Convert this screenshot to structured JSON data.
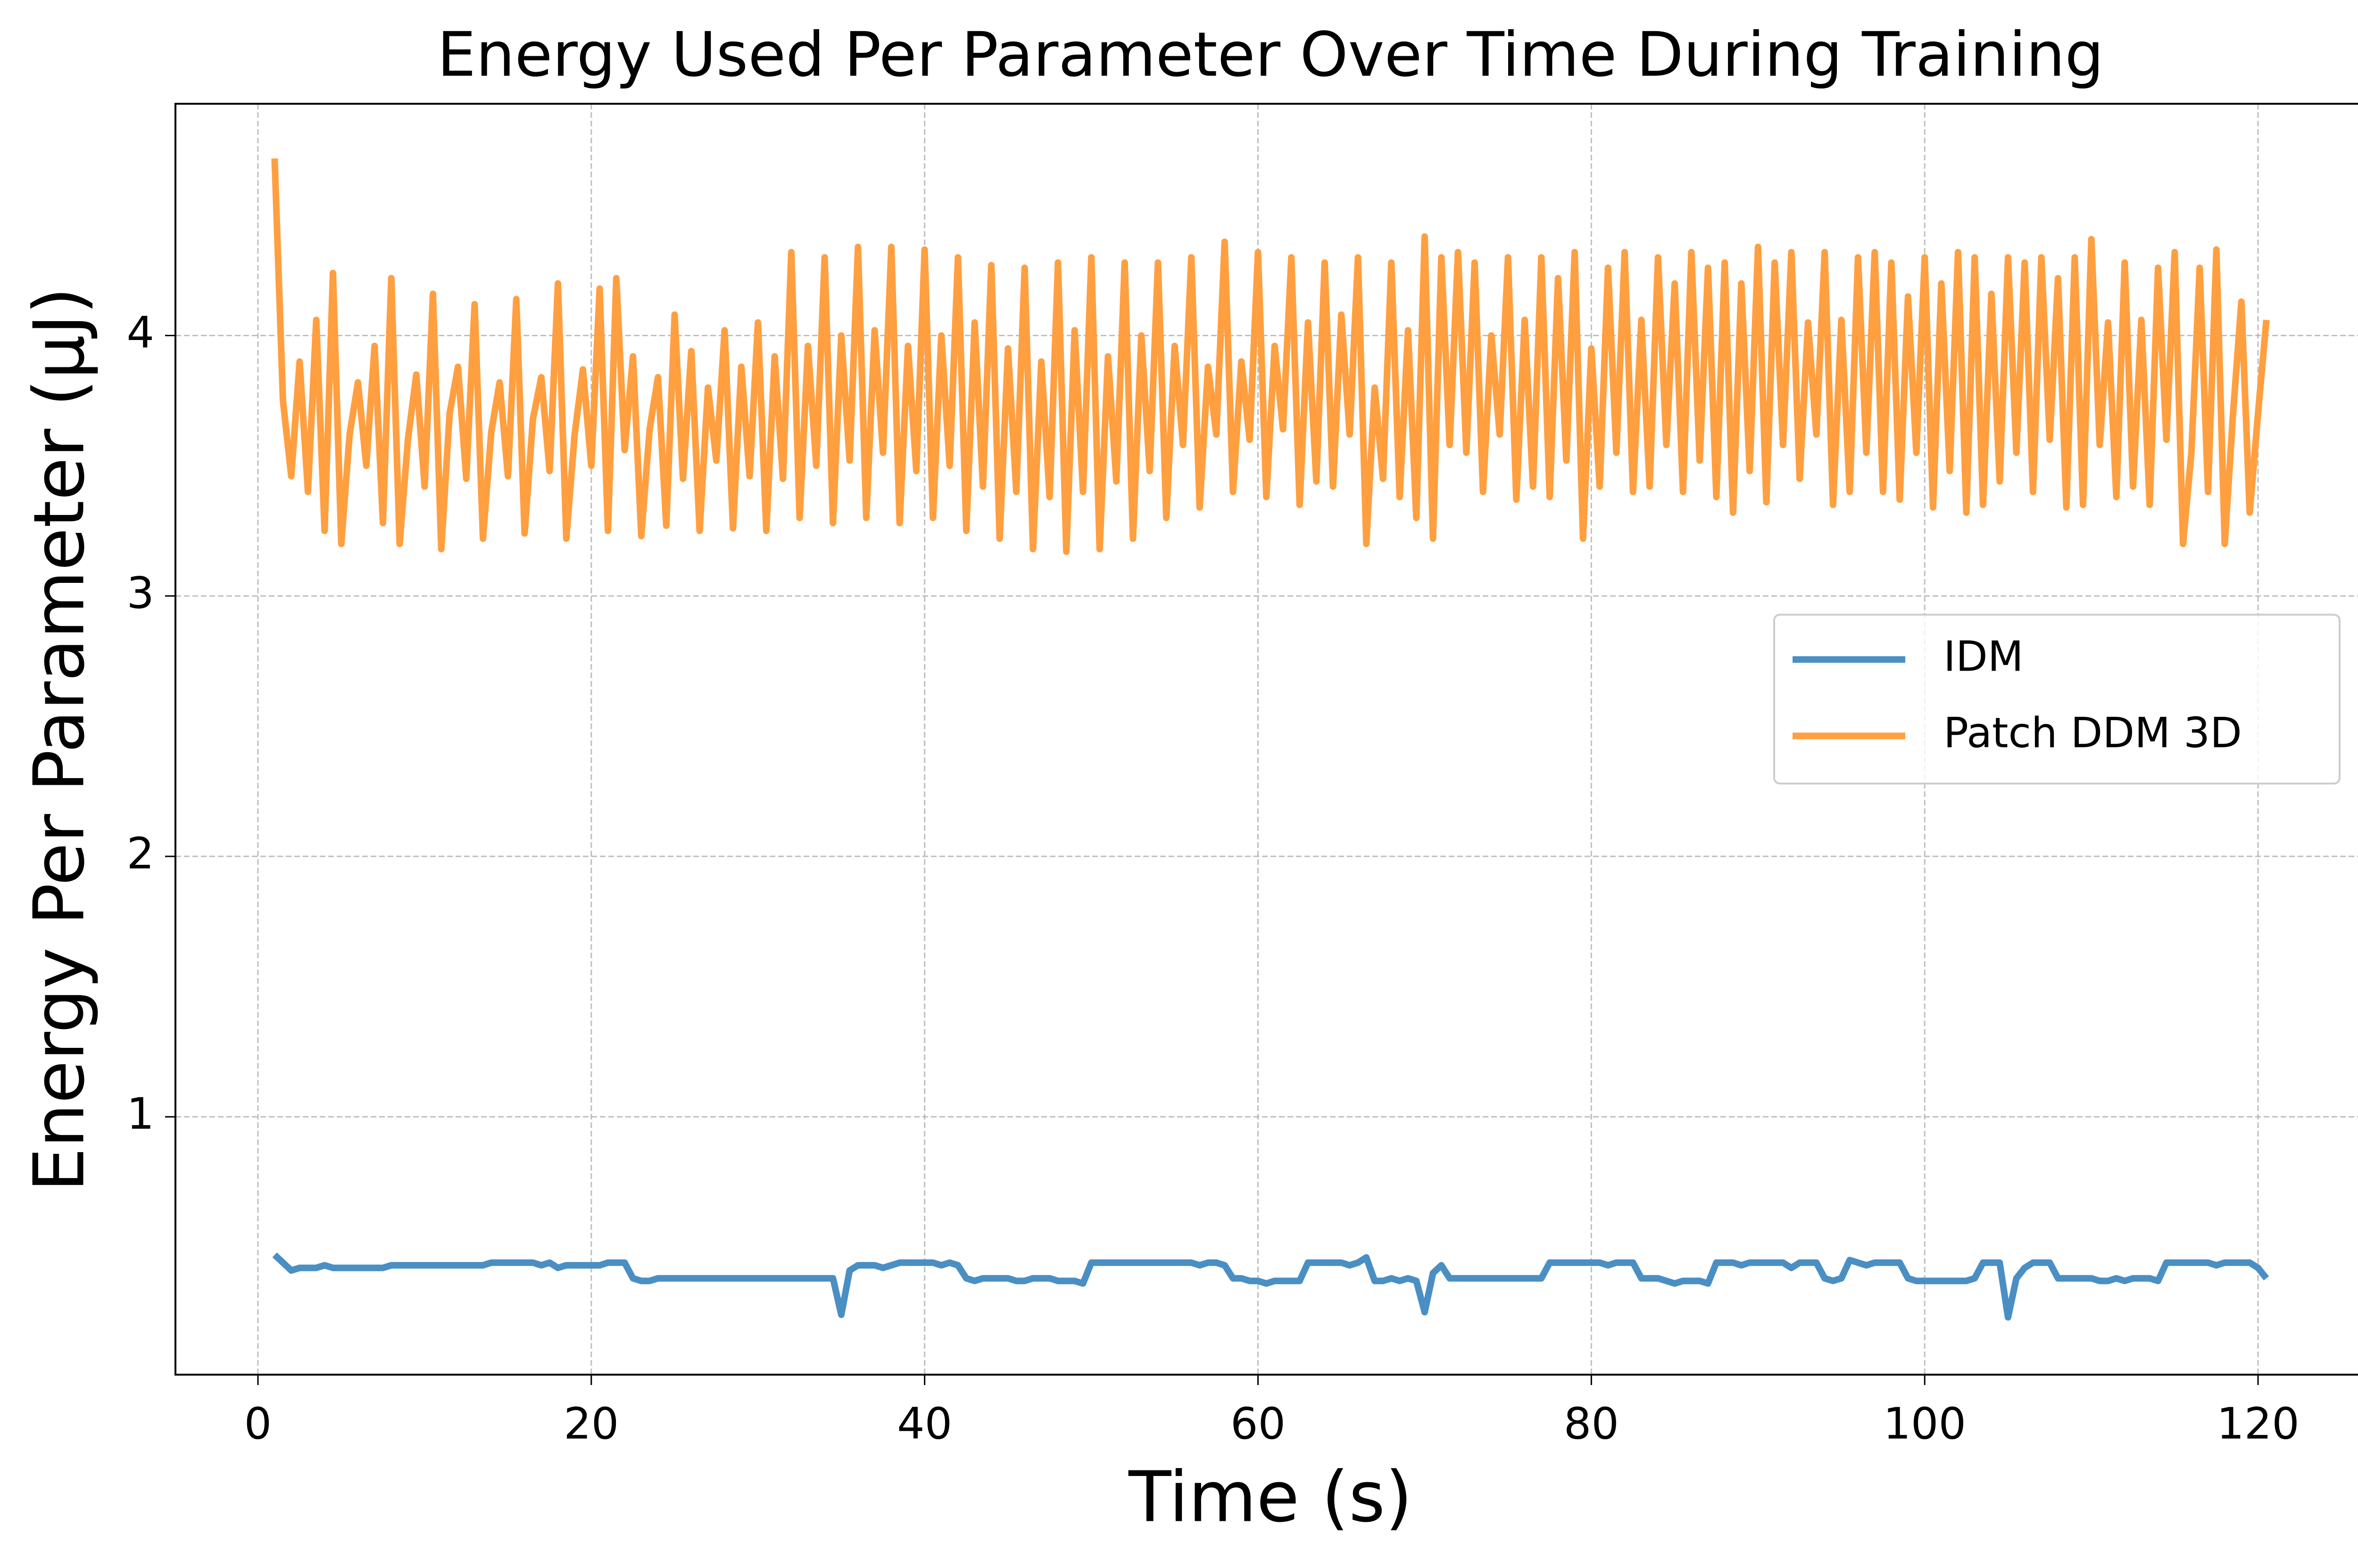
{
  "chart_data": {
    "type": "line",
    "title": "Energy Used Per Parameter Over Time During Training",
    "x_label": "Time (s)",
    "y_label": "Energy Per Parameter (μJ)",
    "x": [
      1,
      1.5,
      2,
      2.5,
      3,
      3.5,
      4,
      4.5,
      5,
      5.5,
      6,
      6.5,
      7,
      7.5,
      8,
      8.5,
      9,
      9.5,
      10,
      10.5,
      11,
      11.5,
      12,
      12.5,
      13,
      13.5,
      14,
      14.5,
      15,
      15.5,
      16,
      16.5,
      17,
      17.5,
      18,
      18.5,
      19,
      19.5,
      20,
      20.5,
      21,
      21.5,
      22,
      22.5,
      23,
      23.5,
      24,
      24.5,
      25,
      25.5,
      26,
      26.5,
      27,
      27.5,
      28,
      28.5,
      29,
      29.5,
      30,
      30.5,
      31,
      31.5,
      32,
      32.5,
      33,
      33.5,
      34,
      34.5,
      35,
      35.5,
      36,
      36.5,
      37,
      37.5,
      38,
      38.5,
      39,
      39.5,
      40,
      40.5,
      41,
      41.5,
      42,
      42.5,
      43,
      43.5,
      44,
      44.5,
      45,
      45.5,
      46,
      46.5,
      47,
      47.5,
      48,
      48.5,
      49,
      49.5,
      50,
      50.5,
      51,
      51.5,
      52,
      52.5,
      53,
      53.5,
      54,
      54.5,
      55,
      55.5,
      56,
      56.5,
      57,
      57.5,
      58,
      58.5,
      59,
      59.5,
      60,
      60.5,
      61,
      61.5,
      62,
      62.5,
      63,
      63.5,
      64,
      64.5,
      65,
      65.5,
      66,
      66.5,
      67,
      67.5,
      68,
      68.5,
      69,
      69.5,
      70,
      70.5,
      71,
      71.5,
      72,
      72.5,
      73,
      73.5,
      74,
      74.5,
      75,
      75.5,
      76,
      76.5,
      77,
      77.5,
      78,
      78.5,
      79,
      79.5,
      80,
      80.5,
      81,
      81.5,
      82,
      82.5,
      83,
      83.5,
      84,
      84.5,
      85,
      85.5,
      86,
      86.5,
      87,
      87.5,
      88,
      88.5,
      89,
      89.5,
      90,
      90.5,
      91,
      91.5,
      92,
      92.5,
      93,
      93.5,
      94,
      94.5,
      95,
      95.5,
      96,
      96.5,
      97,
      97.5,
      98,
      98.5,
      99,
      99.5,
      100,
      100.5,
      101,
      101.5,
      102,
      102.5,
      103,
      103.5,
      104,
      104.5,
      105,
      105.5,
      106,
      106.5,
      107,
      107.5,
      108,
      108.5,
      109,
      109.5,
      110,
      110.5,
      111,
      111.5,
      112,
      112.5,
      113,
      113.5,
      114,
      114.5,
      115,
      115.5,
      116,
      116.5,
      117,
      117.5,
      118,
      118.5,
      119,
      119.5,
      120,
      120.5
    ],
    "series": [
      {
        "name": "IDM",
        "color": "#4a8fc4",
        "values": [
          0.47,
          0.44,
          0.41,
          0.42,
          0.42,
          0.42,
          0.43,
          0.42,
          0.42,
          0.42,
          0.42,
          0.42,
          0.42,
          0.42,
          0.43,
          0.43,
          0.43,
          0.43,
          0.43,
          0.43,
          0.43,
          0.43,
          0.43,
          0.43,
          0.43,
          0.43,
          0.44,
          0.44,
          0.44,
          0.44,
          0.44,
          0.44,
          0.43,
          0.44,
          0.42,
          0.43,
          0.43,
          0.43,
          0.43,
          0.43,
          0.44,
          0.44,
          0.44,
          0.38,
          0.37,
          0.37,
          0.38,
          0.38,
          0.38,
          0.38,
          0.38,
          0.38,
          0.38,
          0.38,
          0.38,
          0.38,
          0.38,
          0.38,
          0.38,
          0.38,
          0.38,
          0.38,
          0.38,
          0.38,
          0.38,
          0.38,
          0.38,
          0.38,
          0.24,
          0.41,
          0.43,
          0.43,
          0.43,
          0.42,
          0.43,
          0.44,
          0.44,
          0.44,
          0.44,
          0.44,
          0.43,
          0.44,
          0.43,
          0.38,
          0.37,
          0.38,
          0.38,
          0.38,
          0.38,
          0.37,
          0.37,
          0.38,
          0.38,
          0.38,
          0.37,
          0.37,
          0.37,
          0.36,
          0.44,
          0.44,
          0.44,
          0.44,
          0.44,
          0.44,
          0.44,
          0.44,
          0.44,
          0.44,
          0.44,
          0.44,
          0.44,
          0.43,
          0.44,
          0.44,
          0.43,
          0.38,
          0.38,
          0.37,
          0.37,
          0.36,
          0.37,
          0.37,
          0.37,
          0.37,
          0.44,
          0.44,
          0.44,
          0.44,
          0.44,
          0.43,
          0.44,
          0.46,
          0.37,
          0.37,
          0.38,
          0.37,
          0.38,
          0.37,
          0.25,
          0.4,
          0.43,
          0.38,
          0.38,
          0.38,
          0.38,
          0.38,
          0.38,
          0.38,
          0.38,
          0.38,
          0.38,
          0.38,
          0.38,
          0.44,
          0.44,
          0.44,
          0.44,
          0.44,
          0.44,
          0.44,
          0.43,
          0.44,
          0.44,
          0.44,
          0.38,
          0.38,
          0.38,
          0.37,
          0.36,
          0.37,
          0.37,
          0.37,
          0.36,
          0.44,
          0.44,
          0.44,
          0.43,
          0.44,
          0.44,
          0.44,
          0.44,
          0.44,
          0.42,
          0.44,
          0.44,
          0.44,
          0.38,
          0.37,
          0.38,
          0.45,
          0.44,
          0.43,
          0.44,
          0.44,
          0.44,
          0.44,
          0.38,
          0.37,
          0.37,
          0.37,
          0.37,
          0.37,
          0.37,
          0.37,
          0.38,
          0.44,
          0.44,
          0.44,
          0.23,
          0.38,
          0.42,
          0.44,
          0.44,
          0.44,
          0.38,
          0.38,
          0.38,
          0.38,
          0.38,
          0.37,
          0.37,
          0.38,
          0.37,
          0.38,
          0.38,
          0.38,
          0.37,
          0.44,
          0.44,
          0.44,
          0.44,
          0.44,
          0.44,
          0.43,
          0.44,
          0.44,
          0.44,
          0.44,
          0.42,
          0.38
        ]
      },
      {
        "name": "Patch DDM 3D",
        "color": "#ff9f40",
        "values": [
          4.68,
          3.75,
          3.46,
          3.9,
          3.4,
          4.06,
          3.25,
          4.24,
          3.2,
          3.62,
          3.82,
          3.5,
          3.96,
          3.28,
          4.22,
          3.2,
          3.6,
          3.85,
          3.42,
          4.16,
          3.18,
          3.7,
          3.88,
          3.45,
          4.12,
          3.22,
          3.63,
          3.82,
          3.46,
          4.14,
          3.24,
          3.68,
          3.84,
          3.48,
          4.2,
          3.22,
          3.62,
          3.87,
          3.5,
          4.18,
          3.25,
          4.22,
          3.56,
          3.92,
          3.23,
          3.64,
          3.84,
          3.27,
          4.08,
          3.45,
          3.94,
          3.25,
          3.8,
          3.52,
          4.02,
          3.26,
          3.88,
          3.46,
          4.05,
          3.25,
          3.92,
          3.45,
          4.32,
          3.3,
          3.96,
          3.5,
          4.3,
          3.28,
          4.0,
          3.52,
          4.34,
          3.3,
          4.02,
          3.55,
          4.34,
          3.28,
          3.96,
          3.48,
          4.33,
          3.3,
          4.0,
          3.5,
          4.3,
          3.25,
          4.05,
          3.42,
          4.27,
          3.22,
          3.95,
          3.4,
          4.26,
          3.18,
          3.9,
          3.38,
          4.28,
          3.17,
          4.02,
          3.4,
          4.3,
          3.18,
          3.92,
          3.44,
          4.28,
          3.22,
          4.0,
          3.48,
          4.28,
          3.3,
          3.96,
          3.58,
          4.3,
          3.34,
          3.88,
          3.62,
          4.36,
          3.4,
          3.9,
          3.6,
          4.32,
          3.38,
          3.96,
          3.64,
          4.3,
          3.35,
          4.05,
          3.44,
          4.28,
          3.42,
          4.08,
          3.62,
          4.3,
          3.2,
          3.8,
          3.45,
          4.28,
          3.38,
          4.02,
          3.3,
          4.38,
          3.22,
          4.3,
          3.58,
          4.32,
          3.55,
          4.28,
          3.4,
          4.0,
          3.62,
          4.3,
          3.37,
          4.06,
          3.42,
          4.3,
          3.38,
          4.22,
          3.52,
          4.32,
          3.22,
          3.95,
          3.42,
          4.26,
          3.55,
          4.32,
          3.4,
          4.06,
          3.42,
          4.3,
          3.58,
          4.2,
          3.4,
          4.32,
          3.52,
          4.26,
          3.38,
          4.28,
          3.32,
          4.2,
          3.48,
          4.34,
          3.36,
          4.28,
          3.58,
          4.32,
          3.45,
          4.05,
          3.62,
          4.32,
          3.35,
          4.06,
          3.4,
          4.3,
          3.55,
          4.32,
          3.4,
          4.28,
          3.37,
          4.15,
          3.55,
          4.3,
          3.34,
          4.2,
          3.48,
          4.32,
          3.32,
          4.3,
          3.35,
          4.16,
          3.44,
          4.3,
          3.55,
          4.28,
          3.4,
          4.3,
          3.6,
          4.22,
          3.34,
          4.3,
          3.35,
          4.37,
          3.58,
          4.05,
          3.38,
          4.28,
          3.42,
          4.06,
          3.35,
          4.26,
          3.6,
          4.32,
          3.2,
          3.55,
          4.26,
          3.4,
          4.33,
          3.2,
          3.7,
          4.13,
          3.32,
          3.7,
          4.06
        ]
      }
    ],
    "xlim": [
      -4.95,
      126.45
    ],
    "xticks": [
      0,
      20,
      40,
      60,
      80,
      100,
      120
    ],
    "ylim": [
      0.01,
      4.89
    ],
    "yticks": [
      1,
      2,
      3,
      4
    ],
    "grid": true,
    "legend": "center right"
  }
}
